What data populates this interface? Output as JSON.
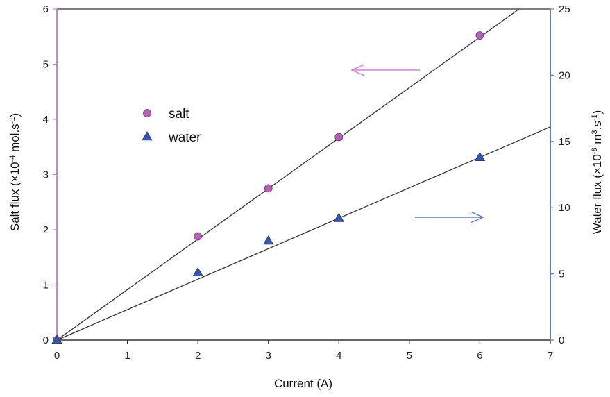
{
  "chart_data": {
    "type": "scatter",
    "xlabel": "Current (A)",
    "ylabel_left": {
      "main": "Salt flux (×10",
      "sup1": "-4",
      "mid": " mol.s",
      "sup2": "-1",
      "end": ")"
    },
    "ylabel_right": {
      "main": "Water flux (×10",
      "sup1": "-8",
      "mid1": " m",
      "sup2": "3",
      "mid2": ".s",
      "sup3": "-1",
      "end": ")"
    },
    "xlim": [
      0,
      7
    ],
    "ylim_left": [
      0,
      6
    ],
    "ylim_right": [
      0,
      25
    ],
    "x_ticks": [
      "0",
      "1",
      "2",
      "3",
      "4",
      "5",
      "6",
      "7"
    ],
    "y_left_ticks": [
      "0",
      "1",
      "2",
      "3",
      "4",
      "5",
      "6"
    ],
    "y_right_ticks": [
      "0",
      "5",
      "10",
      "15",
      "20",
      "25"
    ],
    "grid": false,
    "legend_position": "upper-left",
    "series": [
      {
        "name": "salt",
        "axis": "left",
        "marker": "circle",
        "x": [
          0,
          2,
          3,
          4,
          6
        ],
        "y": [
          0,
          1.88,
          2.75,
          3.68,
          5.52
        ],
        "fit_slope": 0.915
      },
      {
        "name": "water",
        "axis": "right",
        "marker": "triangle",
        "x": [
          0,
          2,
          3,
          4,
          6
        ],
        "y": [
          0,
          5.1,
          7.5,
          9.2,
          13.8
        ],
        "fit_slope": 2.3
      }
    ],
    "colors": {
      "salt": "#b85fb8",
      "water": "#3657b0",
      "left_axis": "#d080d0",
      "right_axis": "#5a7ad0",
      "fit_line": "#333333"
    }
  }
}
